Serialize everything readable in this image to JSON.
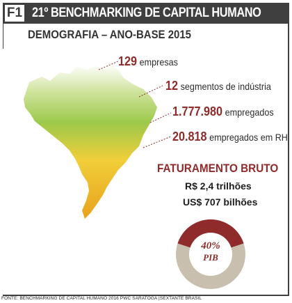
{
  "header": {
    "figure_tag": "F1",
    "title": "21º BENCHMARKING DE CAPITAL HUMANO"
  },
  "subtitle": "DEMOGRAFIA – ANO-BASE 2015",
  "stats": [
    {
      "number": "129",
      "label": "empresas"
    },
    {
      "number": "12",
      "label": "segmentos de indústria"
    },
    {
      "number": "1.777.980",
      "label": "empregados"
    },
    {
      "number": "20.818",
      "label": "empregados em RH"
    }
  ],
  "revenue": {
    "title": "FATURAMENTO BRUTO",
    "brl": "R$ 2,4 trilhões",
    "usd": "US$ 707 bilhões"
  },
  "pib": {
    "percent_label": "40%",
    "label": "PIB",
    "fraction": 0.4
  },
  "source": "FONTE: BENCHMARKING DE CAPITAL HUMANO 2016    PWC SARATOGA |SEXTANTE BRASIL",
  "colors": {
    "header_bg": "#3f3f3f",
    "accent_red": "#8f2b2b",
    "map_green": "#9cc94a",
    "map_yellow": "#f1ce3a",
    "map_orange": "#e8a21c",
    "donut_grey": "#c9bfae"
  }
}
